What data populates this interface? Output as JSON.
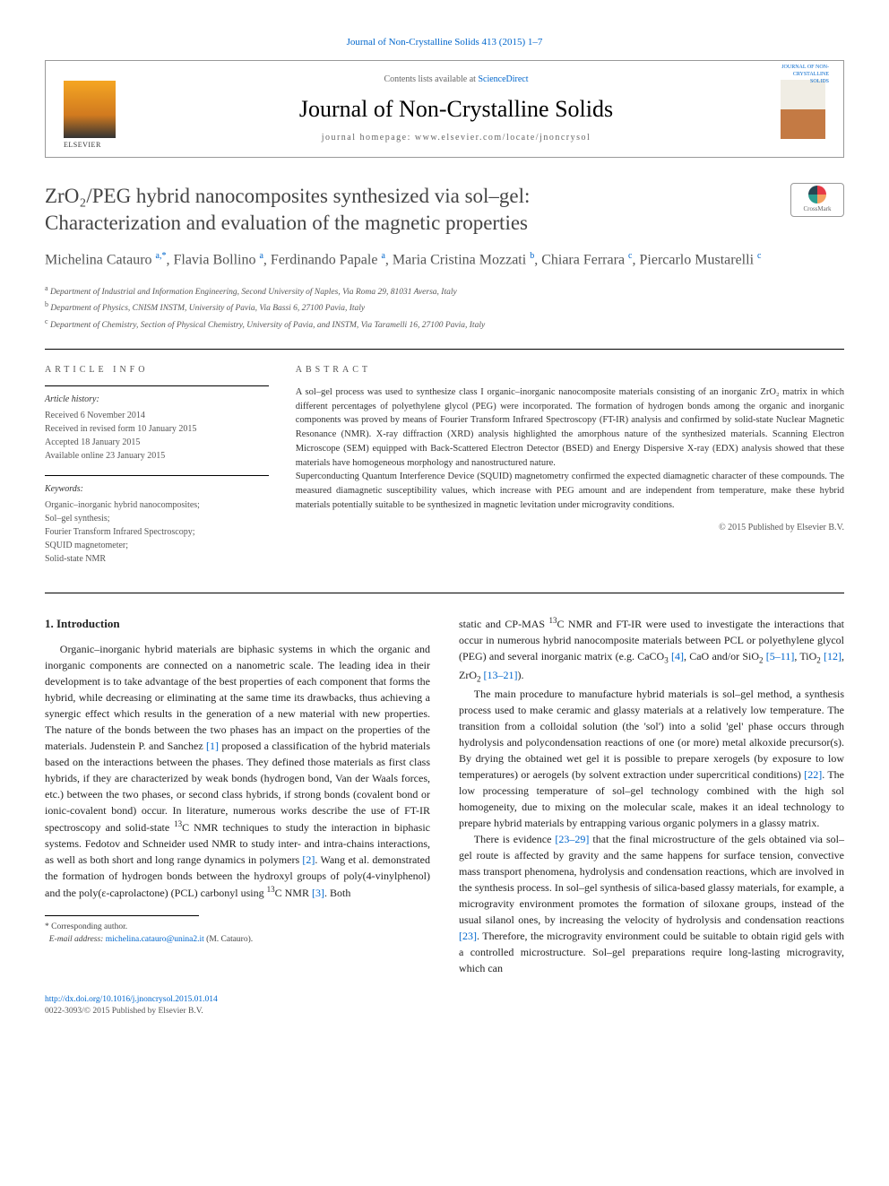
{
  "top_link": "Journal of Non-Crystalline Solids 413 (2015) 1–7",
  "header": {
    "contents_prefix": "Contents lists available at ",
    "contents_link": "ScienceDirect",
    "journal_name": "Journal of Non-Crystalline Solids",
    "homepage_label": "journal homepage: www.elsevier.com/locate/jnoncrysol",
    "cover_label": "JOURNAL OF NON-CRYSTALLINE SOLIDS",
    "publisher": "ELSEVIER"
  },
  "crossmark_label": "CrossMark",
  "title_line1": "ZrO₂/PEG hybrid nanocomposites synthesized via sol–gel:",
  "title_line2": "Characterization and evaluation of the magnetic properties",
  "authors_html": "Michelina Catauro <sup class='affmark'>a,</sup><sup class='affmark'>*</sup>, Flavia Bollino <sup class='affmark'>a</sup>, Ferdinando Papale <sup class='affmark'>a</sup>, Maria Cristina Mozzati <sup class='affmark'>b</sup>, Chiara Ferrara <sup class='affmark'>c</sup>, Piercarlo Mustarelli <sup class='affmark'>c</sup>",
  "affiliations": {
    "a": "Department of Industrial and Information Engineering, Second University of Naples, Via Roma 29, 81031 Aversa, Italy",
    "b": "Department of Physics, CNISM INSTM, University of Pavia, Via Bassi 6, 27100 Pavia, Italy",
    "c": "Department of Chemistry, Section of Physical Chemistry, University of Pavia, and INSTM, Via Taramelli 16, 27100 Pavia, Italy"
  },
  "article_info": {
    "heading": "article info",
    "history_label": "Article history:",
    "received": "Received 6 November 2014",
    "revised": "Received in revised form 10 January 2015",
    "accepted": "Accepted 18 January 2015",
    "online": "Available online 23 January 2015",
    "keywords_label": "Keywords:",
    "keywords": "Organic–inorganic hybrid nanocomposites;\nSol–gel synthesis;\nFourier Transform Infrared Spectroscopy;\nSQUID magnetometer;\nSolid-state NMR"
  },
  "abstract": {
    "heading": "abstract",
    "p1": "A sol–gel process was used to synthesize class I organic–inorganic nanocomposite materials consisting of an inorganic ZrO₂ matrix in which different percentages of polyethylene glycol (PEG) were incorporated. The formation of hydrogen bonds among the organic and inorganic components was proved by means of Fourier Transform Infrared Spectroscopy (FT-IR) analysis and confirmed by solid-state Nuclear Magnetic Resonance (NMR). X-ray diffraction (XRD) analysis highlighted the amorphous nature of the synthesized materials. Scanning Electron Microscope (SEM) equipped with Back-Scattered Electron Detector (BSED) and Energy Dispersive X-ray (EDX) analysis showed that these materials have homogeneous morphology and nanostructured nature.",
    "p2": "Superconducting Quantum Interference Device (SQUID) magnetometry confirmed the expected diamagnetic character of these compounds. The measured diamagnetic susceptibility values, which increase with PEG amount and are independent from temperature, make these hybrid materials potentially suitable to be synthesized in magnetic levitation under microgravity conditions.",
    "copyright": "© 2015 Published by Elsevier B.V."
  },
  "intro": {
    "heading": "1. Introduction",
    "left_html": "Organic–inorganic hybrid materials are biphasic systems in which the organic and inorganic components are connected on a nanometric scale. The leading idea in their development is to take advantage of the best properties of each component that forms the hybrid, while decreasing or eliminating at the same time its drawbacks, thus achieving a synergic effect which results in the generation of a new material with new properties. The nature of the bonds between the two phases has an impact on the properties of the materials. Judenstein P. and Sanchez <span class='ref-link'>[1]</span> proposed a classification of the hybrid materials based on the interactions between the phases. They defined those materials as first class hybrids, if they are characterized by weak bonds (hydrogen bond, Van der Waals forces, etc.) between the two phases, or second class hybrids, if strong bonds (covalent bond or ionic-covalent bond) occur. In literature, numerous works describe the use of FT-IR spectroscopy and solid-state <sup>13</sup>C NMR techniques to study the interaction in biphasic systems. Fedotov and Schneider used NMR to study inter- and intra-chains interactions, as well as both short and long range dynamics in polymers <span class='ref-link'>[2]</span>. Wang et al. demonstrated the formation of hydrogen bonds between the hydroxyl groups of poly(4-vinylphenol) and the poly(ε-caprolactone) (PCL) carbonyl using <sup>13</sup>C NMR <span class='ref-link'>[3]</span>. Both",
    "right_p1_html": "static and CP-MAS <sup>13</sup>C NMR and FT-IR were used to investigate the interactions that occur in numerous hybrid nanocomposite materials between PCL or polyethylene glycol (PEG) and several inorganic matrix (e.g. CaCO<sub>3</sub> <span class='ref-link'>[4]</span>, CaO and/or SiO<sub>2</sub> <span class='ref-link'>[5–11]</span>, TiO<sub>2</sub> <span class='ref-link'>[12]</span>, ZrO<sub>2</sub> <span class='ref-link'>[13–21]</span>).",
    "right_p2_html": "The main procedure to manufacture hybrid materials is sol–gel method, a synthesis process used to make ceramic and glassy materials at a relatively low temperature. The transition from a colloidal solution (the 'sol') into a solid 'gel' phase occurs through hydrolysis and polycondensation reactions of one (or more) metal alkoxide precursor(s). By drying the obtained wet gel it is possible to prepare xerogels (by exposure to low temperatures) or aerogels (by solvent extraction under supercritical conditions) <span class='ref-link'>[22]</span>. The low processing temperature of sol–gel technology combined with the high sol homogeneity, due to mixing on the molecular scale, makes it an ideal technology to prepare hybrid materials by entrapping various organic polymers in a glassy matrix.",
    "right_p3_html": "There is evidence <span class='ref-link'>[23–29]</span> that the final microstructure of the gels obtained via sol–gel route is affected by gravity and the same happens for surface tension, convective mass transport phenomena, hydrolysis and condensation reactions, which are involved in the synthesis process. In sol–gel synthesis of silica-based glassy materials, for example, a microgravity environment promotes the formation of siloxane groups, instead of the usual silanol ones, by increasing the velocity of hydrolysis and condensation reactions <span class='ref-link'>[23]</span>. Therefore, the microgravity environment could be suitable to obtain rigid gels with a controlled microstructure. Sol–gel preparations require long-lasting microgravity, which can"
  },
  "footnote": {
    "marker": "*",
    "label": "Corresponding author.",
    "email_label": "E-mail address:",
    "email": "michelina.catauro@unina2.it",
    "email_paren": "(M. Catauro)."
  },
  "doi": {
    "url": "http://dx.doi.org/10.1016/j.jnoncrysol.2015.01.014",
    "issn_line": "0022-3093/© 2015 Published by Elsevier B.V."
  },
  "colors": {
    "link": "#0066cc",
    "text": "#222222",
    "muted": "#555555",
    "border": "#999999"
  }
}
